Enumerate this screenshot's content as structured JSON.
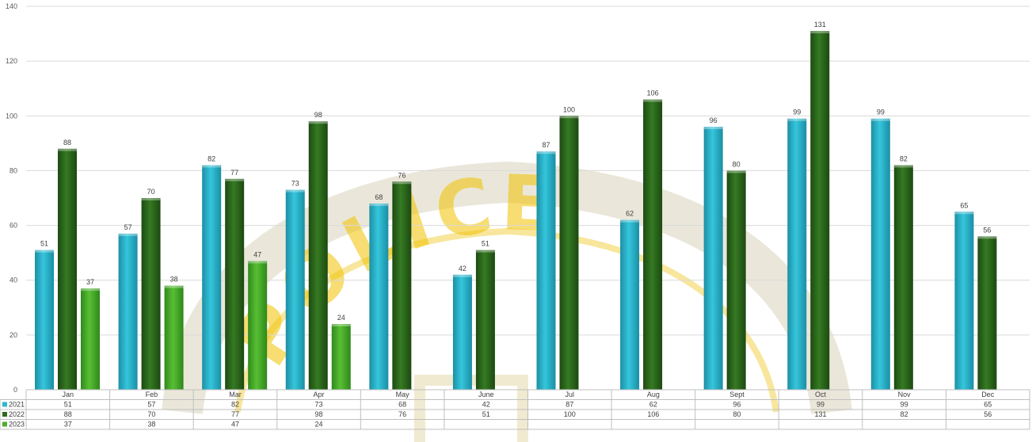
{
  "chart_data": {
    "type": "bar",
    "categories": [
      "Jan",
      "Feb",
      "Mar",
      "Apr",
      "May",
      "June",
      "Jul",
      "Aug",
      "Sept",
      "Oct",
      "Nov",
      "Dec"
    ],
    "series": [
      {
        "name": "2021",
        "color": "#2bb7cf",
        "values": [
          51,
          57,
          82,
          73,
          68,
          42,
          87,
          62,
          96,
          99,
          99,
          65
        ]
      },
      {
        "name": "2022",
        "color": "#2e6b1f",
        "values": [
          88,
          70,
          77,
          98,
          76,
          51,
          100,
          106,
          80,
          131,
          82,
          56
        ]
      },
      {
        "name": "2023",
        "color": "#4cae2c",
        "values": [
          37,
          38,
          47,
          24,
          null,
          null,
          null,
          null,
          null,
          null,
          null,
          null
        ]
      }
    ],
    "yticks": [
      0,
      20,
      40,
      60,
      80,
      100,
      120,
      140
    ],
    "ylim": [
      0,
      140
    ],
    "grid": true,
    "legend": "data-table-left",
    "watermark": {
      "text": "POLICE",
      "color": "#f2c200"
    }
  }
}
